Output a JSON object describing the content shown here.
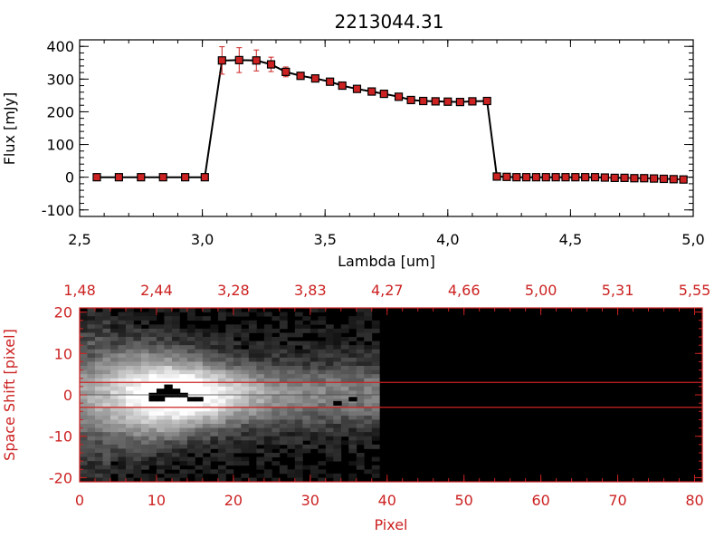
{
  "chart_data": [
    {
      "type": "line",
      "title": "2213044.31",
      "xlabel": "Lambda [um]",
      "ylabel": "Flux [mJy]",
      "xlim": [
        2.5,
        5.0
      ],
      "ylim": [
        -120,
        420
      ],
      "xticks": [
        "2.5",
        "3.0",
        "3.5",
        "4.0",
        "4.5",
        "5.0"
      ],
      "yticks": [
        "-100",
        "0",
        "100",
        "200",
        "300",
        "400"
      ],
      "series": [
        {
          "color": "#000000",
          "marker_color": "#cc2222",
          "x": [
            2.57,
            2.66,
            2.75,
            2.84,
            2.93,
            3.01,
            3.08,
            3.15,
            3.22,
            3.28,
            3.34,
            3.4,
            3.46,
            3.52,
            3.57,
            3.63,
            3.69,
            3.74,
            3.8,
            3.85,
            3.9,
            3.95,
            4.0,
            4.05,
            4.1,
            4.16,
            4.2,
            4.24,
            4.28,
            4.32,
            4.36,
            4.4,
            4.44,
            4.48,
            4.52,
            4.56,
            4.6,
            4.64,
            4.68,
            4.72,
            4.76,
            4.8,
            4.84,
            4.88,
            4.92,
            4.96
          ],
          "y": [
            0,
            0,
            0,
            0,
            0,
            0,
            357,
            358,
            357,
            345,
            322,
            310,
            302,
            292,
            280,
            270,
            262,
            255,
            246,
            236,
            233,
            232,
            231,
            230,
            232,
            233,
            2,
            1,
            0,
            0,
            0,
            0,
            0,
            0,
            0,
            0,
            0,
            -1,
            -2,
            -2,
            -3,
            -3,
            -4,
            -5,
            -6,
            -7
          ],
          "error": [
            0,
            0,
            0,
            0,
            0,
            0,
            42,
            38,
            32,
            22,
            15,
            10,
            8,
            6,
            5,
            5,
            4,
            4,
            4,
            4,
            3,
            3,
            3,
            3,
            3,
            3,
            2,
            2,
            2,
            2,
            2,
            2,
            2,
            2,
            2,
            2,
            2,
            2,
            2,
            2,
            2,
            2,
            2,
            2,
            2,
            2
          ]
        }
      ]
    },
    {
      "type": "heatmap",
      "xlabel": "Pixel",
      "ylabel": "Space Shift [pixel]",
      "xlim": [
        0,
        81
      ],
      "ylim": [
        -21,
        21
      ],
      "xticks": [
        "0",
        "10",
        "20",
        "30",
        "40",
        "50",
        "60",
        "70",
        "80"
      ],
      "yticks": [
        "-20",
        "-10",
        "0",
        "10",
        "20"
      ],
      "top_axis_ticks": [
        "1.48",
        "2.44",
        "3.28",
        "3.83",
        "4.27",
        "4.66",
        "5.00",
        "5.31",
        "5.55"
      ],
      "extraction_window": [
        -3,
        3
      ],
      "signal_extent_pixels": [
        0,
        39
      ],
      "colormap": "grayscale",
      "axis_color": "#cc2222"
    }
  ]
}
